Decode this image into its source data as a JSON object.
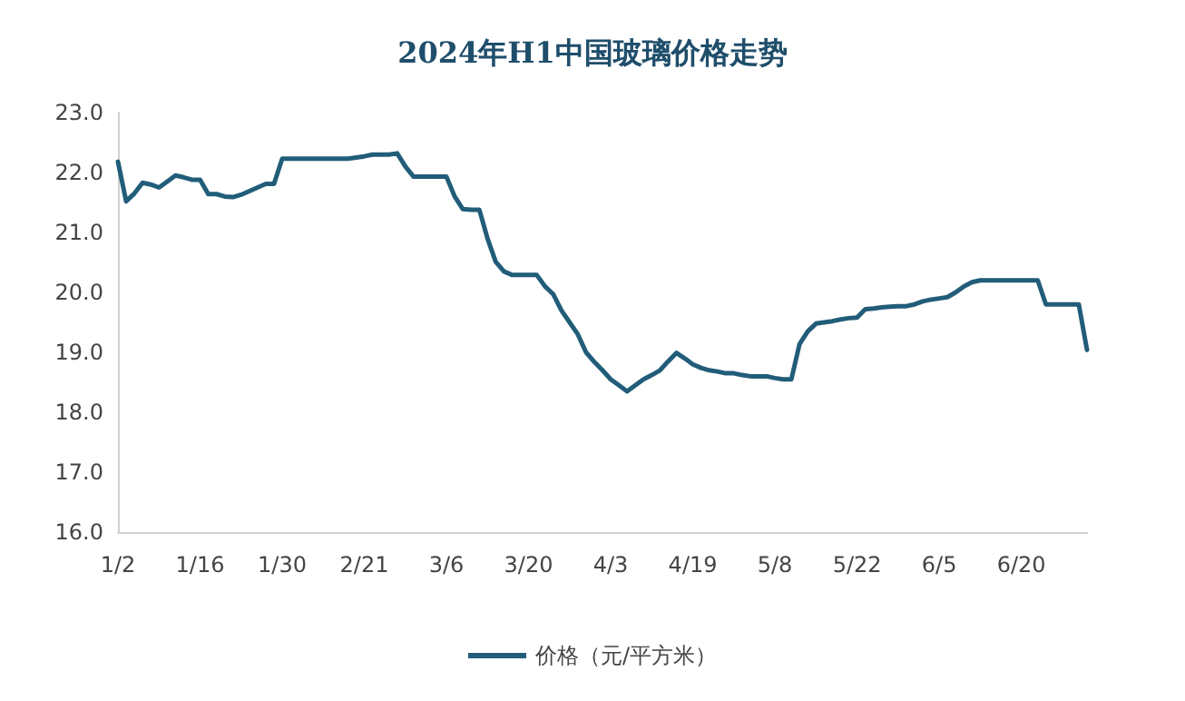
{
  "chart_data": {
    "type": "line",
    "title": "2024年H1中国玻璃价格走势",
    "categories": [
      "1/2",
      null,
      null,
      null,
      null,
      null,
      null,
      null,
      null,
      null,
      "1/16",
      null,
      null,
      null,
      null,
      null,
      null,
      null,
      null,
      null,
      "1/30",
      null,
      null,
      null,
      null,
      null,
      null,
      null,
      null,
      null,
      "2/21",
      null,
      null,
      null,
      null,
      null,
      null,
      null,
      null,
      null,
      "3/6",
      null,
      null,
      null,
      null,
      null,
      null,
      null,
      null,
      null,
      "3/20",
      null,
      null,
      null,
      null,
      null,
      null,
      null,
      null,
      null,
      "4/3",
      null,
      null,
      null,
      null,
      null,
      null,
      null,
      null,
      null,
      "4/19",
      null,
      null,
      null,
      null,
      null,
      null,
      null,
      null,
      null,
      "5/8",
      null,
      null,
      null,
      null,
      null,
      null,
      null,
      null,
      null,
      "5/22",
      null,
      null,
      null,
      null,
      null,
      null,
      null,
      null,
      null,
      "6/5",
      null,
      null,
      null,
      null,
      null,
      null,
      null,
      null,
      null,
      "6/20",
      null,
      null,
      null,
      null,
      null,
      null,
      null,
      null
    ],
    "series": [
      {
        "name": "价格（元/平方米）",
        "color": "#215d79",
        "values": [
          22.18,
          21.52,
          21.65,
          21.83,
          21.8,
          21.75,
          21.85,
          21.95,
          21.92,
          21.88,
          21.88,
          21.64,
          21.64,
          21.6,
          21.59,
          21.63,
          21.69,
          21.75,
          21.81,
          21.81,
          22.23,
          22.23,
          22.23,
          22.23,
          22.23,
          22.23,
          22.23,
          22.23,
          22.23,
          22.25,
          22.27,
          22.3,
          22.3,
          22.3,
          22.32,
          22.1,
          21.93,
          21.93,
          21.93,
          21.93,
          21.93,
          21.6,
          21.39,
          21.38,
          21.38,
          20.9,
          20.51,
          20.35,
          20.29,
          20.29,
          20.29,
          20.29,
          20.1,
          19.97,
          19.7,
          19.5,
          19.3,
          19.0,
          18.84,
          18.7,
          18.55,
          18.45,
          18.35,
          18.45,
          18.55,
          18.62,
          18.7,
          18.85,
          18.99,
          18.9,
          18.8,
          18.74,
          18.7,
          18.68,
          18.65,
          18.65,
          18.62,
          18.6,
          18.6,
          18.6,
          18.57,
          18.55,
          18.55,
          19.14,
          19.35,
          19.48,
          19.5,
          19.52,
          19.55,
          19.57,
          19.58,
          19.72,
          19.73,
          19.75,
          19.76,
          19.77,
          19.77,
          19.8,
          19.85,
          19.88,
          19.9,
          19.92,
          20.0,
          20.1,
          20.17,
          20.2,
          20.2,
          20.2,
          20.2,
          20.2,
          20.2,
          20.2,
          20.2,
          19.8,
          19.8,
          19.8,
          19.8,
          19.8,
          19.04
        ]
      }
    ],
    "ylim": [
      16,
      23
    ],
    "yticks": [
      {
        "value": 16,
        "label": "16.0"
      },
      {
        "value": 17,
        "label": "17.0"
      },
      {
        "value": 18,
        "label": "18.0"
      },
      {
        "value": 19,
        "label": "19.0"
      },
      {
        "value": 20,
        "label": "20.0"
      },
      {
        "value": 21,
        "label": "21.0"
      },
      {
        "value": 22,
        "label": "22.0"
      },
      {
        "value": 23,
        "label": "23.0"
      }
    ],
    "grid": false,
    "legend": "bottom",
    "marker": "none",
    "line_style": "solid"
  }
}
